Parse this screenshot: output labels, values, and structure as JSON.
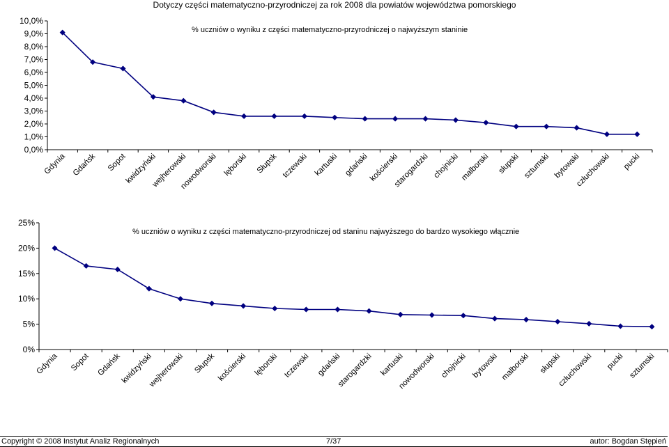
{
  "page_title": "Dotyczy części matematyczno-przyrodniczej za rok 2008 dla powiatów województwa pomorskiego",
  "chart_data": [
    {
      "type": "line",
      "title": "% uczniów o wyniku z części matematyczno-przyrodniczej o najwyższym staninie",
      "categories": [
        "Gdynia",
        "Gdańsk",
        "Sopot",
        "kwidzyński",
        "wejherowski",
        "nowodworski",
        "lęborski",
        "Słupsk",
        "tczewski",
        "kartuski",
        "gdański",
        "kościerski",
        "starogardzki",
        "chojnicki",
        "malborski",
        "słupski",
        "sztumski",
        "bytowski",
        "człuchowski",
        "pucki"
      ],
      "values": [
        9.1,
        6.8,
        6.3,
        4.1,
        3.8,
        2.9,
        2.6,
        2.6,
        2.6,
        2.5,
        2.4,
        2.4,
        2.4,
        2.3,
        2.1,
        1.8,
        1.8,
        1.7,
        1.2,
        1.2
      ],
      "ylim": [
        0,
        10
      ],
      "yticks": [
        "0,0%",
        "1,0%",
        "2,0%",
        "3,0%",
        "4,0%",
        "5,0%",
        "6,0%",
        "7,0%",
        "8,0%",
        "9,0%",
        "10,0%"
      ],
      "line_color": "#000080",
      "grid": false
    },
    {
      "type": "line",
      "title": "% uczniów o wyniku z części matematyczno-przyrodniczej od staninu najwyższego do bardzo wysokiego włącznie",
      "categories": [
        "Gdynia",
        "Sopot",
        "Gdańsk",
        "kwidzyński",
        "wejherowski",
        "Słupsk",
        "kościerski",
        "lęborski",
        "tczewski",
        "gdański",
        "starogardzki",
        "kartuski",
        "nowodworski",
        "chojnicki",
        "bytowski",
        "malborski",
        "słupski",
        "człuchowski",
        "pucki",
        "sztumski"
      ],
      "values": [
        20.0,
        16.5,
        15.8,
        12.0,
        10.0,
        9.1,
        8.6,
        8.1,
        7.9,
        7.9,
        7.6,
        6.9,
        6.8,
        6.7,
        6.1,
        5.9,
        5.5,
        5.1,
        4.6,
        4.5
      ],
      "ylim": [
        0,
        25
      ],
      "yticks": [
        "0%",
        "5%",
        "10%",
        "15%",
        "20%",
        "25%"
      ],
      "line_color": "#000080",
      "grid": false
    }
  ],
  "footer": {
    "copyright": "Copyright © 2008 Instytut Analiz Regionalnych",
    "page": "7/37",
    "author": "autor: Bogdan Stępień"
  }
}
